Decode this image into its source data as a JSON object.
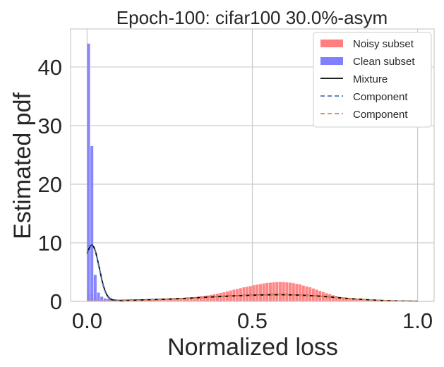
{
  "chart_data": {
    "type": "bar",
    "title": "Epoch-100: cifar100 30.0%-asym",
    "xlabel": "Normalized loss",
    "ylabel": "Estimated pdf",
    "xlim": [
      -0.05,
      1.05
    ],
    "ylim": [
      0,
      46.5
    ],
    "xticks": [
      0.0,
      0.5,
      1.0
    ],
    "xtick_labels": [
      "0.0",
      "0.5",
      "1.0"
    ],
    "yticks": [
      0,
      10,
      20,
      30,
      40
    ],
    "ytick_labels": [
      "0",
      "10",
      "20",
      "30",
      "40"
    ],
    "grid": true,
    "legend_position": "top-right",
    "colors": {
      "noisy": "#ff7f7f",
      "clean": "#7f7fff",
      "mixture": "#000000",
      "component1": "#4c72b0",
      "component2": "#dd8452",
      "grid": "#cccccc",
      "frame": "#cccccc"
    },
    "bin_width": 0.01,
    "series": [
      {
        "name": "Noisy subset",
        "kind": "histogram",
        "x": [
          0.0,
          0.01,
          0.02,
          0.03,
          0.04,
          0.05,
          0.06,
          0.07,
          0.08,
          0.09,
          0.1,
          0.11,
          0.12,
          0.13,
          0.14,
          0.15,
          0.16,
          0.17,
          0.18,
          0.19,
          0.2,
          0.21,
          0.22,
          0.23,
          0.24,
          0.25,
          0.26,
          0.27,
          0.28,
          0.29,
          0.3,
          0.31,
          0.32,
          0.33,
          0.34,
          0.35,
          0.36,
          0.37,
          0.38,
          0.39,
          0.4,
          0.41,
          0.42,
          0.43,
          0.44,
          0.45,
          0.46,
          0.47,
          0.48,
          0.49,
          0.5,
          0.51,
          0.52,
          0.53,
          0.54,
          0.55,
          0.56,
          0.57,
          0.58,
          0.59,
          0.6,
          0.61,
          0.62,
          0.63,
          0.64,
          0.65,
          0.66,
          0.67,
          0.68,
          0.69,
          0.7,
          0.71,
          0.72,
          0.73,
          0.74,
          0.75,
          0.76,
          0.77,
          0.78,
          0.79,
          0.8,
          0.81,
          0.82,
          0.83,
          0.84,
          0.85,
          0.86,
          0.87,
          0.88,
          0.89,
          0.9,
          0.91,
          0.92,
          0.93,
          0.94,
          0.95,
          0.96,
          0.97,
          0.98,
          0.99
        ],
        "values": [
          1.3,
          1.2,
          0.6,
          0.3,
          0.2,
          0.2,
          0.15,
          0.15,
          0.15,
          0.15,
          0.15,
          0.15,
          0.15,
          0.15,
          0.2,
          0.2,
          0.2,
          0.2,
          0.25,
          0.25,
          0.3,
          0.3,
          0.35,
          0.35,
          0.4,
          0.4,
          0.45,
          0.5,
          0.5,
          0.55,
          0.6,
          0.65,
          0.7,
          0.8,
          0.85,
          0.95,
          1.0,
          1.1,
          1.2,
          1.3,
          1.45,
          1.55,
          1.7,
          1.85,
          2.0,
          2.1,
          2.25,
          2.4,
          2.5,
          2.6,
          2.75,
          2.85,
          2.95,
          3.05,
          3.15,
          3.2,
          3.25,
          3.3,
          3.3,
          3.3,
          3.25,
          3.2,
          3.1,
          3.0,
          2.9,
          2.7,
          2.55,
          2.4,
          2.2,
          2.0,
          1.8,
          1.6,
          1.4,
          1.25,
          1.05,
          0.9,
          0.75,
          0.6,
          0.5,
          0.4,
          0.35,
          0.3,
          0.25,
          0.2,
          0.15,
          0.12,
          0.1,
          0.08,
          0.06,
          0.05,
          0.04,
          0.03,
          0.02,
          0.02,
          0.01,
          0.01,
          0.01,
          0.01,
          0.01,
          0.01
        ]
      },
      {
        "name": "Clean subset",
        "kind": "histogram",
        "x": [
          0.0,
          0.01,
          0.02,
          0.03,
          0.04,
          0.05,
          0.06,
          0.07,
          0.08,
          0.09,
          0.1,
          0.11,
          0.12,
          0.13,
          0.14,
          0.15,
          0.2,
          0.25,
          0.3,
          0.35,
          0.4,
          0.45,
          0.5,
          0.55,
          0.6,
          0.65,
          0.7,
          0.75
        ],
        "values": [
          44.0,
          26.5,
          4.5,
          1.5,
          0.8,
          0.5,
          0.4,
          0.3,
          0.25,
          0.2,
          0.2,
          0.18,
          0.15,
          0.15,
          0.15,
          0.15,
          0.1,
          0.1,
          0.1,
          0.1,
          0.1,
          0.1,
          0.1,
          0.08,
          0.08,
          0.05,
          0.05,
          0.03
        ]
      },
      {
        "name": "Mixture",
        "kind": "line",
        "x": [
          0.0,
          0.005,
          0.01,
          0.015,
          0.02,
          0.025,
          0.03,
          0.035,
          0.04,
          0.045,
          0.05,
          0.055,
          0.06,
          0.065,
          0.07,
          0.075,
          0.08,
          0.09,
          0.1,
          0.12,
          0.15,
          0.2,
          0.25,
          0.3,
          0.35,
          0.4,
          0.45,
          0.5,
          0.55,
          0.58,
          0.6,
          0.65,
          0.7,
          0.75,
          0.8,
          0.85,
          0.9,
          0.95,
          1.0
        ],
        "values": [
          8.2,
          8.9,
          9.5,
          9.6,
          9.3,
          8.6,
          7.5,
          6.2,
          4.9,
          3.6,
          2.5,
          1.7,
          1.1,
          0.7,
          0.45,
          0.3,
          0.22,
          0.18,
          0.16,
          0.18,
          0.22,
          0.3,
          0.4,
          0.52,
          0.68,
          0.82,
          0.95,
          1.05,
          1.12,
          1.14,
          1.13,
          1.05,
          0.9,
          0.68,
          0.45,
          0.27,
          0.14,
          0.06,
          0.02
        ]
      },
      {
        "name": "Component",
        "kind": "dashed-line",
        "x": [
          0.0,
          0.005,
          0.01,
          0.015,
          0.02,
          0.025,
          0.03,
          0.035,
          0.04,
          0.045,
          0.05,
          0.055,
          0.06,
          0.065,
          0.07,
          0.075,
          0.08,
          0.09,
          0.1,
          0.12
        ],
        "values": [
          8.1,
          8.8,
          9.4,
          9.5,
          9.2,
          8.5,
          7.4,
          6.1,
          4.8,
          3.5,
          2.4,
          1.6,
          1.0,
          0.6,
          0.35,
          0.2,
          0.1,
          0.04,
          0.01,
          0.0
        ]
      },
      {
        "name": "Component",
        "kind": "dashed-line",
        "x": [
          0.0,
          0.1,
          0.15,
          0.2,
          0.25,
          0.3,
          0.35,
          0.4,
          0.45,
          0.5,
          0.55,
          0.58,
          0.6,
          0.65,
          0.7,
          0.75,
          0.8,
          0.85,
          0.9,
          0.95,
          1.0
        ],
        "values": [
          0.05,
          0.1,
          0.17,
          0.26,
          0.37,
          0.5,
          0.66,
          0.8,
          0.93,
          1.03,
          1.1,
          1.12,
          1.11,
          1.03,
          0.88,
          0.66,
          0.44,
          0.26,
          0.13,
          0.05,
          0.02
        ]
      }
    ]
  }
}
